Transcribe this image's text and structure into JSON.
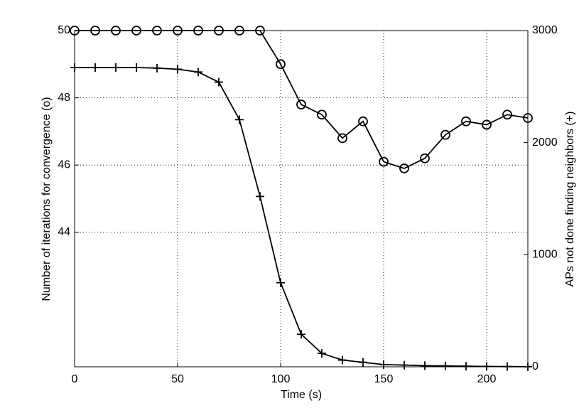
{
  "chart_data": {
    "type": "line",
    "x_label": "Time (s)",
    "y_label": "Number of iterations for convergence (o)",
    "y2_label": "APs not done finding neighbors (+)",
    "x": [
      0,
      10,
      20,
      30,
      40,
      50,
      60,
      70,
      80,
      90,
      100,
      110,
      120,
      130,
      140,
      150,
      160,
      170,
      180,
      190,
      200,
      210,
      220
    ],
    "xlim": [
      0,
      220
    ],
    "xticks": [
      0,
      50,
      100,
      150,
      200
    ],
    "ylim": [
      40,
      50
    ],
    "yticks": [
      44,
      46,
      48,
      50
    ],
    "y2lim": [
      0,
      3000
    ],
    "y2ticks": [
      0,
      1000,
      2000,
      3000
    ],
    "grid": true,
    "series": [
      {
        "name": "Number of iterations for convergence",
        "color": "#000000",
        "marker": "o",
        "values": [
          50,
          50,
          50,
          50,
          50,
          50,
          50,
          50,
          50,
          50,
          49,
          47.8,
          47.5,
          46.8,
          47.3,
          46.1,
          45.9,
          46.2,
          46.9,
          47.3,
          47.2,
          47.5,
          47.4
        ]
      },
      {
        "name": "APs not done finding neighbors",
        "color": "#000000",
        "marker": "+",
        "axis": "y2",
        "values": [
          2670,
          2670,
          2670,
          2670,
          2665,
          2655,
          2630,
          2540,
          2205,
          1520,
          750,
          290,
          120,
          60,
          40,
          20,
          15,
          10,
          8,
          5,
          3,
          2,
          1
        ]
      }
    ]
  }
}
